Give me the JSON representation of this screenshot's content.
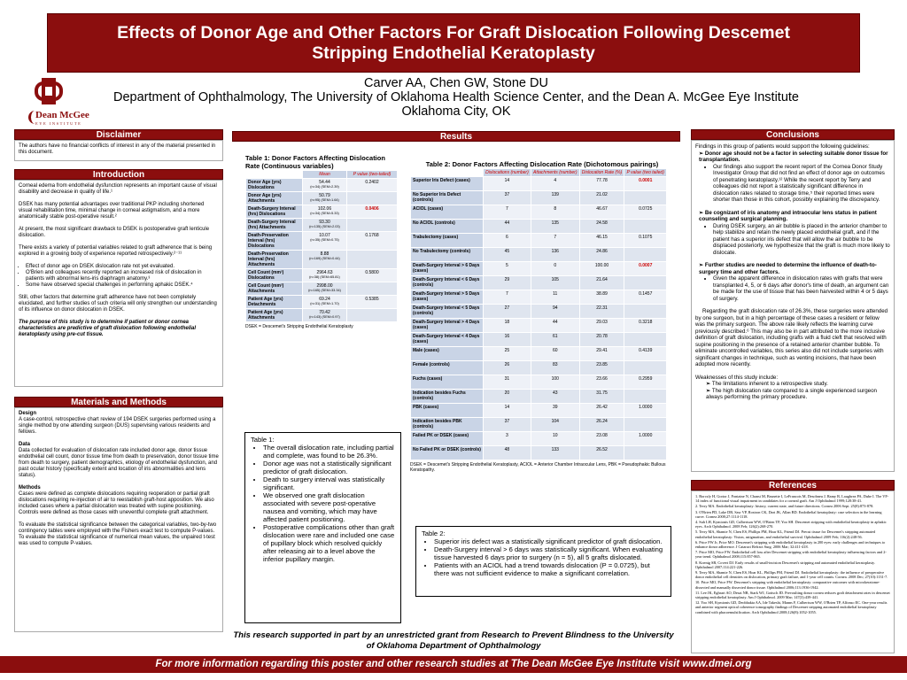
{
  "title": {
    "line1": "Effects of Donor Age and Other Factors For Graft Dislocation Following Descemet",
    "line2": "Stripping Endothelial Keratoplasty"
  },
  "authors": "Carver AA, Chen GW, Stone DU",
  "affiliation": "Department of Ophthalmology, The University of Oklahoma Health Science Center, and the Dean A. McGee Eye Institute",
  "location": "Oklahoma City, OK",
  "logo": {
    "ou": "OU logo",
    "mcgee_name": "Dean McGee",
    "mcgee_sub": "EYE INSTITUTE"
  },
  "headers": {
    "disclaimer": "Disclaimer",
    "introduction": "Introduction",
    "materials": "Materials and Methods",
    "results": "Results",
    "conclusions": "Conclusions",
    "references": "References"
  },
  "disclaimer": "The authors have no financial conflicts of interest in any of the material presented in this document.",
  "intro": {
    "p1": "Corneal edema from endothelial dysfunction represents an important cause of visual disability and decrease in quality of life.¹",
    "p2": "DSEK has many potential advantages over traditional PKP including shortened visual rehabilitation time, minimal change in corneal astigmatism, and a more anatomically stable post-operative result.²",
    "p3": "At present, the most significant drawback to DSEK is postoperative graft lenticule dislocation.",
    "p4": "There exists a variety of potential variables related to graft adherence that is being explored in a growing body of experience reported retrospectively.²⁻¹¹",
    "b1": "Effect of donor age on DSEK dislocation rate not yet evaluated.",
    "b2": "O'Brien and colleagues recently reported an increased risk of dislocation in patients with abnormal lens-iris diaphragm anatomy.³",
    "b3": "Some have observed special challenges in performing aphakic DSEK.⁴",
    "p5": "Still, other factors that determine graft adherence have not been completely elucidated, and further studies of such criteria will only strengthen our understanding of its influence on donor dislocation in DSEK.",
    "p6": "The purpose of this study is to determine if patient or donor cornea characteristics are predictive of graft dislocation following endothelial keratoplasty using pre-cut tissue."
  },
  "methods": {
    "h1": "Design",
    "t1": "A case-control, retrospective chart review of 194 DSEK surgeries performed using a single method by one attending surgeon (DUS) supervising various residents and fellows.",
    "h2": "Data",
    "t2": "Data collected for evaluation of dislocation rate included donor age, donor tissue endothelial cell count, donor tissue time from death to preservation, donor tissue time from death to surgery, patient demographics, etiology of endothelial dysfunction, and past ocular history (specifically extent and location of iris abnormalities and lens status).",
    "h3": "Methods",
    "t3": "Cases were defined as complete dislocations requiring reoperation or partial graft dislocations requiring re-injection of air to reestablish graft-host apposition. We also included cases where a partial dislocation was treated with supine positioning. Controls were defined as those cases with uneventful complete graft attachment.",
    "t4": "To evaluate the statistical significance between the categorical variables, two-by-two contingency tables were employed with the Fishers exact test to compute P-values. To evaluate the statistical significance of numerical mean values, the unpaired t-test was used to compute P-values."
  },
  "table1": {
    "caption": "Table 1: Donor Factors Affecting Dislocation Rate (Continuous variables)",
    "headers": [
      "Mean",
      "P value (two-tailed)"
    ],
    "rows": [
      {
        "label": "Donor Age (yrs) Dislocations",
        "mean": "54.44",
        "sub": "(n=34) (SEM=2.39)",
        "p": "0.2402",
        "red": false
      },
      {
        "label": "Donor Age (yrs) Attachments",
        "mean": "50.79",
        "sub": "(n=95) (SEM=1.64)",
        "p": "",
        "red": false
      },
      {
        "label": "Death-Surgery Interval (hrs) Dislocations",
        "mean": "102.06",
        "sub": "(n=34) (SEM=5.33)",
        "p": "0.0406",
        "red": true
      },
      {
        "label": "Death-Surgery Interval (hrs) Attachments",
        "mean": "93.30",
        "sub": "(n=135) (SEM=2.03)",
        "p": "",
        "red": false
      },
      {
        "label": "Death-Preservation Interval (hrs) Dislocations",
        "mean": "10.07",
        "sub": "(n=35) (SEM=0.75)",
        "p": "0.1768",
        "red": false
      },
      {
        "label": "Death-Preservation Interval (hrs) Attachments",
        "mean": "8.88",
        "sub": "(n=169) (SEM=0.44)",
        "p": "",
        "red": false
      },
      {
        "label": "Cell Count (mm²) Dislocations",
        "mean": "2964.63",
        "sub": "(n=38) (SEM=65.81)",
        "p": "0.5800",
        "red": false
      },
      {
        "label": "Cell Count (mm²) Attachments",
        "mean": "2998.00",
        "sub": "(n=165) (SEM=33.34)",
        "p": "",
        "red": false
      },
      {
        "label": "Patient Age (yrs) Detachments",
        "mean": "69.24",
        "sub": "(n=31) (SEM=1.70)",
        "p": "0.5385",
        "red": false
      },
      {
        "label": "Patient Age (yrs) Attachments",
        "mean": "70.42",
        "sub": "(n=143) (SEM=0.97)",
        "p": "",
        "red": false
      }
    ],
    "note": "DSEK = Descemet's Stripping Endothelial Keratoplasty"
  },
  "table2": {
    "caption": "Table 2: Donor Factors Affecting Dislocation Rate (Dichotomous pairings)",
    "headers": [
      "Dislocations (number)",
      "Attachments (number)",
      "Dislocation Rate (%)",
      "P value (two tailed)"
    ],
    "rows": [
      [
        "Superior Iris Defect (cases)",
        "14",
        "4",
        "77.78",
        "0.0001",
        true
      ],
      [
        "No Superior Iris Defect (controls)",
        "37",
        "139",
        "21.02",
        "",
        false
      ],
      [
        "ACIOL (cases)",
        "7",
        "8",
        "46.67",
        "0.0725",
        false
      ],
      [
        "No ACIOL (controls)",
        "44",
        "135",
        "24.58",
        "",
        false
      ],
      [
        "Trabulectomy (cases)",
        "6",
        "7",
        "46.15",
        "0.1075",
        false
      ],
      [
        "No Trabulectomy (controls)",
        "45",
        "136",
        "24.86",
        "",
        false
      ],
      [
        "Death-Surgery Interval > 6 Days (cases)",
        "5",
        "0",
        "100.00",
        "0.0007",
        true
      ],
      [
        "Death-Surgery Interval < 6 Days (controls)",
        "29",
        "105",
        "21.64",
        "",
        false
      ],
      [
        "Death-Surgery Interval > 5 Days (cases)",
        "7",
        "11",
        "38.89",
        "0.1457",
        false
      ],
      [
        "Death-Surgery Interval < 5 Days (controls)",
        "27",
        "94",
        "22.31",
        "",
        false
      ],
      [
        "Death-Surgery Interval > 4 Days (cases)",
        "18",
        "44",
        "29.03",
        "0.3218",
        false
      ],
      [
        "Death-Surgery Interval < 4 Days (cases)",
        "16",
        "61",
        "20.78",
        "",
        false
      ],
      [
        "Male (cases)",
        "25",
        "60",
        "29.41",
        "0.4139",
        false
      ],
      [
        "Female (controls)",
        "26",
        "83",
        "23.85",
        "",
        false
      ],
      [
        "Fuchs (cases)",
        "31",
        "100",
        "23.66",
        "0.2959",
        false
      ],
      [
        "Indication besides Fuchs (controls)",
        "20",
        "43",
        "31.75",
        "",
        false
      ],
      [
        "PBK (cases)",
        "14",
        "39",
        "26.42",
        "1.0000",
        false
      ],
      [
        "Indication besides PBK (controls)",
        "37",
        "104",
        "26.24",
        "",
        false
      ],
      [
        "Failed PK or DSEK (cases)",
        "3",
        "10",
        "23.08",
        "1.0000",
        false
      ],
      [
        "No Failed PK or DSEK (controls)",
        "48",
        "133",
        "26.52",
        "",
        false
      ]
    ],
    "note": "DSEK = Descemet's Stripping Endothelial Keratoplasty, ACIOL = Anterior Chamber Intraocular Lens, PBK = Pseudophakic Bullous Keratopathy."
  },
  "summary1": {
    "title": "Table 1:",
    "items": [
      "The overall dislocation rate, including partial and complete, was found to be 26.3%.",
      "Donor age was not a statistically significant predictor of graft dislocation.",
      "Death to surgery interval was statistically significant.",
      "We observed one graft dislocation associated with severe post-operative nausea and vomiting, which may have affected patient positioning.",
      "Postoperative complications other than graft dislocation were rare and included one case of pupillary block which resolved quickly after releasing air to a level above the inferior pupillary margin."
    ]
  },
  "summary2": {
    "title": "Table 2:",
    "items": [
      "Superior iris defect was a statistically significant predictor of graft dislocation.",
      "Death-Surgery interval > 6 days was statistically significant. When evaluating tissue harvested 6 days prior to surgery (n = 5), all 5 grafts dislocated.",
      "Patients with an ACIOL had a trend towards dislocation (P = 0.0725), but there was not sufficient evidence to make a significant correlation."
    ]
  },
  "conclusions": {
    "intro": "Findings in this group of patients would support the following guidelines:",
    "g1": "Donor age should not be a factor in selecting suitable donor tissue for transplantation.",
    "g1s": "Our findings also support the recent report of the Cornea Donor Study Investigator Group that did not find an effect of donor age on outcomes of penetrating keratoplasty.¹² While the recent report by Terry and colleagues did not report a statistically significant difference in dislocation rates related to storage time,⁵ their reported times were shorter than those in this cohort, possibly explaining the discrepancy.",
    "g2": "Be cognizant of iris anatomy and intraocular lens status in patient counseling and surgical planning.",
    "g2s": "During DSEK surgery, an air bubble is placed in the anterior chamber to help stabilize and retain the newly placed endothelial graft, and if the patient has a superior iris defect that will allow the air bubble to be displaced posteriorly, we hypothesize that the graft is much more likely to dislocate.",
    "g3": "Further studies are needed to determine the influence of death-to-surgery time and other factors.",
    "g3s": "Given the apparent difference in dislocation rates with grafts that were transplanted 4, 5, or 6 days after donor's time of death, an argument can be made for the use of tissue that has been harvested within 4 or 5 days of surgery.",
    "p1": "Regarding the graft dislocation rate of 26.3%, these surgeries were attended by one surgeon, but in a high percentage of these cases a resident or fellow was the primary surgeon. The above rate likely reflects the learning curve previously described.⁶ This may also be in part attributed to the more inclusive definition of graft dislocation, including grafts with a fluid cleft that resolved with supine positioning in the presence of a retained anterior chamber bubble. To eliminate uncontrolled variables, this series also did not include surgeries with significant changes in technique, such as venting incisions, that have been adopted more recently.",
    "weak": "Weaknesses of this study include:",
    "w1": "The limitations inherent to a retrospective study.",
    "w2": "The high dislocation rate compared to a single experienced surgeon always performing the primary procedure."
  },
  "references": [
    "1. Borcsfy H, Gortor J, Fontaine N, Chansi M, Brunette I, LeFrancois M, Desobneu J, Ramy R, Laughrea PA, Dube I. The VF-14 index of functional visual impairment in candidates for a corneal graft. Am J Ophthalmol 1999;128:38-41.",
    "2. Terry MA. Endothelial keratoplasty: history, current state, and future directions. Cornea 2006 Sept. 25(8):873-878.",
    "3. O'Brien PD, Lake DB, Saw VP, Rostron CK, Dart JK, Allan BD. Endothelial keratoplasty: case selection in the learning curve. Cornea 2008;27:1114-1118.",
    "4. Suh LH, Kymionis GD, Culbertson WW, O'Brien TP, Yoo SH. Descemet stripping with endothelial keratoplasty in aphakic eyes. Arch Ophthalmol. 2008 Feb; 126(2):268-270.",
    "5. Terry MA, Shamie N, Chen ES, Phillips PM, Hoar KL, Friend DJ. Precut tissue for Descemet's stripping automated endothelial keratoplasty: Vision, astigmatism, and endothelial survival. Ophthalmol 2009 Feb; 116(2):248-56.",
    "6. Price FW Jr, Price MO. Descemet's stripping with endothelial keratoplasty in 200 eyes: early challenges and techniques to enhance donor adherence. J Cataract Refract Surg. 2006 Mar; 32:411-418.",
    "7. Price MO, Price FW. Endothelial cell loss after Descemet stripping with endothelial keratoplasty influencing factors and 2-year trend. Ophthalmol 2008;115:857-865.",
    "8. Koenig SB, Covert DJ. Early results of small-incision Descemet's stripping and automated endothelial keratoplasty. Ophthalmol 2007;114:221-226.",
    "9. Terry MA, Shamie N, Chen ES, Hoar KL, Phillips PM, Friend DJ. Endothelial keratoplasty: the influence of preoperative donor endothelial cell densities on dislocation, primary graft failure, and 1-year cell counts. Cornea. 2008 Dec; 27(10):1131-7.",
    "10. Price MO, Price FW. Descemet's stripping with endothelial keratoplasty: comparative outcomes with microkeratome-dissected and manually dissected donor tissue. Ophthalmol 2006;113:1936-1942.",
    "11. Lee JK, Eghrari AO, Desai NR, Stark WJ, Gottsch JD. Prevoulting donor cornea reduces graft detachment rates in descemet stripping endothelial keratoplasty. Am J Ophthalmol. 2009 Mar; 147(3):439-441.",
    "12. Yoo SH, Kymionis GD, Deobhakta AA, Ide Takeshi, Manns F, Culbertson WW, O'Brien TP, Alfonso EC. One-year results and anterior segment optical coherence tomography findings of Descemet stripping automated endothelial keratoplasty combined with phacoemulsification. Arch Ophthalmol 2008;126(8):1052-1055."
  ],
  "support": "This research supported in part by an unrestricted grant from Research to Prevent Blindness to the University of Oklahoma Department of Ophthalmology",
  "footer": "For more information regarding this poster and other research studies at The Dean McGee Eye Institute visit www.dmei.org"
}
